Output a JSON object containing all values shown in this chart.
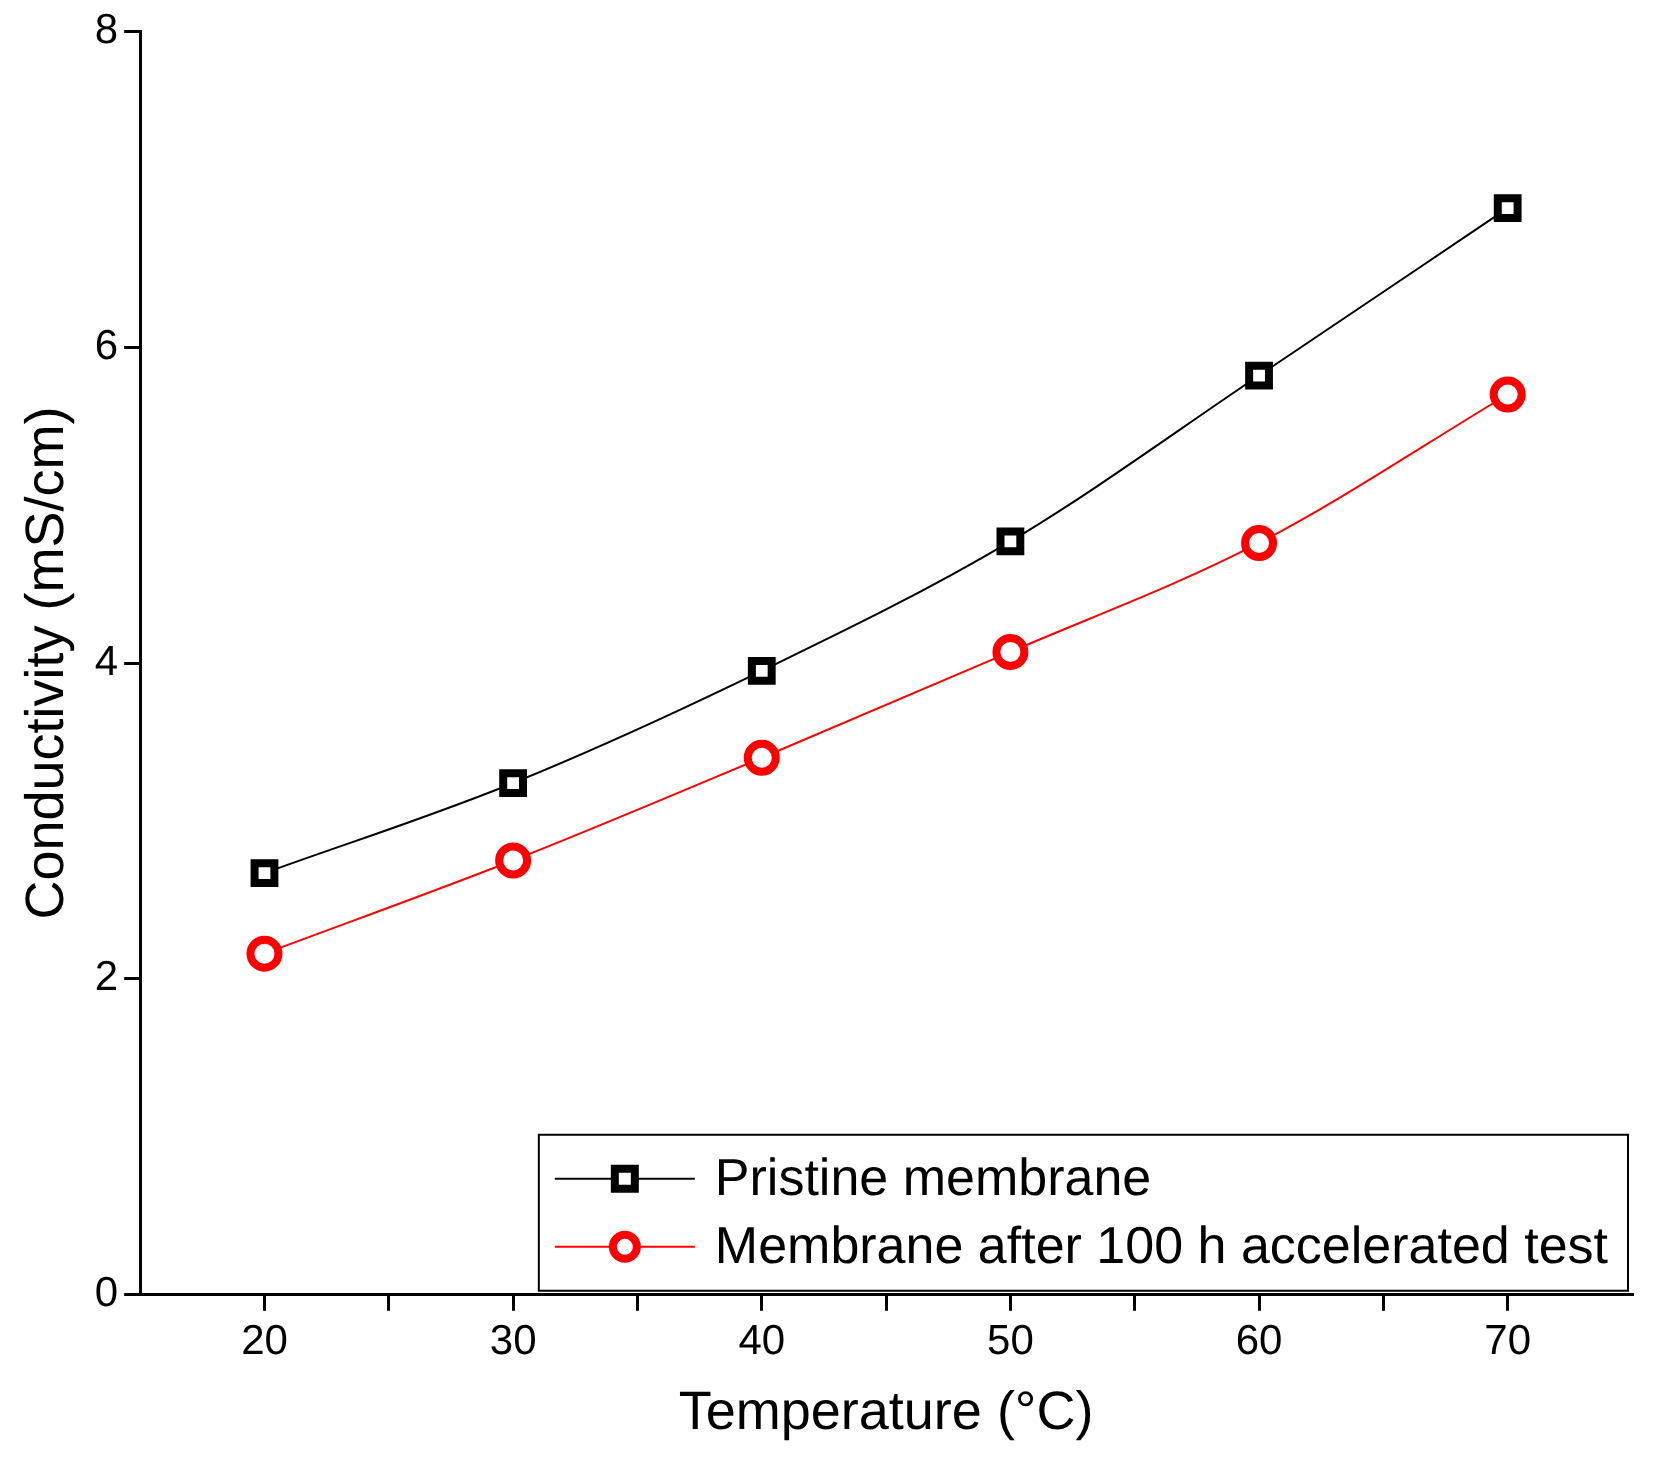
{
  "chart_data": {
    "type": "line",
    "xlabel": "Temperature (°C)",
    "ylabel": "Conductivity (mS/cm)",
    "x": [
      20,
      30,
      40,
      50,
      60,
      70
    ],
    "series": [
      {
        "name": "Pristine membrane",
        "color": "#000000",
        "marker": "square",
        "values": [
          2.67,
          3.24,
          3.95,
          4.77,
          5.82,
          6.88
        ]
      },
      {
        "name": "Membrane after 100 h accelerated test",
        "color": "#ff0000",
        "marker": "circle",
        "values": [
          2.16,
          2.75,
          3.4,
          4.07,
          4.76,
          5.7
        ]
      }
    ],
    "xlim": [
      15,
      75
    ],
    "xticks": [
      20,
      {
        "value": 25,
        "label": null
      },
      30,
      {
        "value": 35,
        "label": null
      },
      40,
      {
        "value": 45,
        "label": null
      },
      50,
      {
        "value": 55,
        "label": null
      },
      60,
      {
        "value": 65,
        "label": null
      },
      70
    ],
    "ylim": [
      0,
      8
    ],
    "yticks": [
      0,
      2,
      4,
      6,
      8
    ],
    "grid": false,
    "legend": "bottom right"
  }
}
